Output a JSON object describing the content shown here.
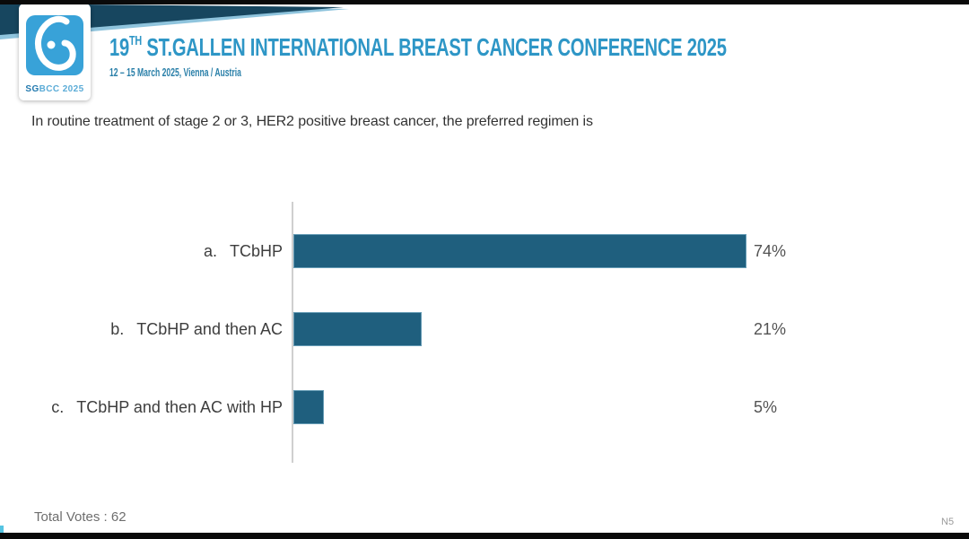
{
  "logo": {
    "text_bold": "SG",
    "text_rest": "BCC 2025",
    "square_color": "#38a2d8"
  },
  "header": {
    "title_number": "19",
    "title_ordinal": "TH",
    "title_rest": " ST.GALLEN INTERNATIONAL BREAST CANCER CONFERENCE 2025",
    "subtitle": "12 – 15 March 2025, Vienna / Austria",
    "title_color": "#2e96c6",
    "banner_color": "#17465f"
  },
  "question": "In routine treatment of stage 2 or 3, HER2 positive breast cancer, the preferred regimen is",
  "chart_data": {
    "type": "bar",
    "orientation": "horizontal",
    "title": "In routine treatment of stage 2 or 3, HER2 positive breast cancer, the preferred regimen is",
    "categories": [
      "a. TCbHP",
      "b. TCbHP and then AC",
      "c. TCbHP and then AC with HP"
    ],
    "values": [
      74,
      21,
      5
    ],
    "value_labels": [
      "74%",
      "21%",
      "5%"
    ],
    "xlim": [
      0,
      100
    ],
    "grid": false,
    "legend": null,
    "bar_color": "#1f5f7e",
    "rows": [
      {
        "letter": "a.",
        "label": "TCbHP",
        "value": 74,
        "pct": "74%"
      },
      {
        "letter": "b.",
        "label": "TCbHP and then AC",
        "value": 21,
        "pct": "21%"
      },
      {
        "letter": "c.",
        "label": "TCbHP and then AC with HP",
        "value": 5,
        "pct": "5%"
      }
    ]
  },
  "footer": {
    "total_votes": "Total Votes : 62",
    "slide_ref": "N5"
  }
}
